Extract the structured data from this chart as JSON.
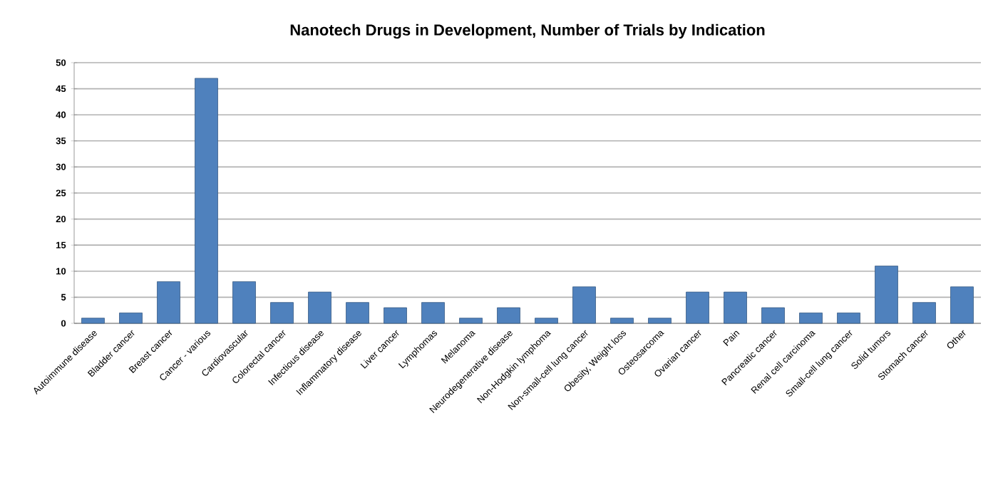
{
  "chart_data": {
    "type": "bar",
    "title": "Nanotech Drugs in Development, Number of Trials by Indication",
    "categories": [
      "Autoimmune disease",
      "Bladder cancer",
      "Breast cancer",
      "Cancer - various",
      "Cardiovascular",
      "Colorectal cancer",
      "Infectious disease",
      "Inflammatory disease",
      "Liver cancer",
      "Lymphomas",
      "Melanoma",
      "Neurodegenerative disease",
      "Non-Hodgkin lymphoma",
      "Non-small-cell lung cancer",
      "Obesity, Weight loss",
      "Osteosarcoma",
      "Ovarian cancer",
      "Pain",
      "Pancreatic cancer",
      "Renal cell carcinoma",
      "Small-cell lung cancer",
      "Solid tumors",
      "Stomach cancer",
      "Other"
    ],
    "values": [
      1,
      2,
      8,
      47,
      8,
      4,
      6,
      4,
      3,
      4,
      1,
      3,
      1,
      7,
      1,
      1,
      6,
      6,
      3,
      2,
      2,
      11,
      4,
      7
    ],
    "color": "#4f81bd",
    "ylim": [
      0,
      50
    ],
    "yticks": [
      0,
      5,
      10,
      15,
      20,
      25,
      30,
      35,
      40,
      45,
      50
    ],
    "grid": "y"
  }
}
